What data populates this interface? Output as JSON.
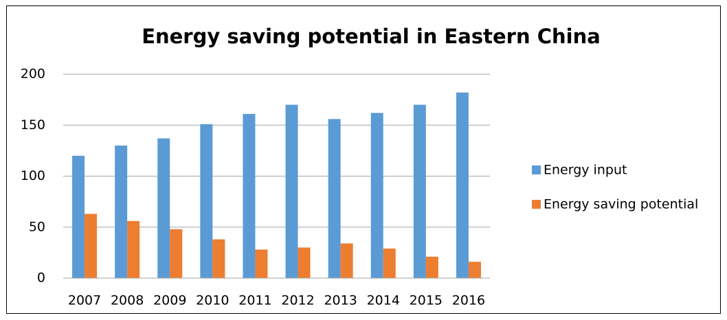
{
  "chart_data": {
    "type": "bar",
    "title": "Energy saving potential in Eastern China",
    "categories": [
      "2007",
      "2008",
      "2009",
      "2010",
      "2011",
      "2012",
      "2013",
      "2014",
      "2015",
      "2016"
    ],
    "series": [
      {
        "name": "Energy input",
        "color": "#5b9bd5",
        "values": [
          120,
          130,
          137,
          151,
          161,
          170,
          156,
          162,
          170,
          182
        ]
      },
      {
        "name": "Energy saving potential",
        "color": "#ed7d31",
        "values": [
          63,
          56,
          48,
          38,
          28,
          30,
          34,
          29,
          21,
          16
        ]
      }
    ],
    "ylim": [
      0,
      200
    ],
    "yticks": [
      0,
      50,
      100,
      150,
      200
    ],
    "grid": true,
    "legend": "right"
  }
}
